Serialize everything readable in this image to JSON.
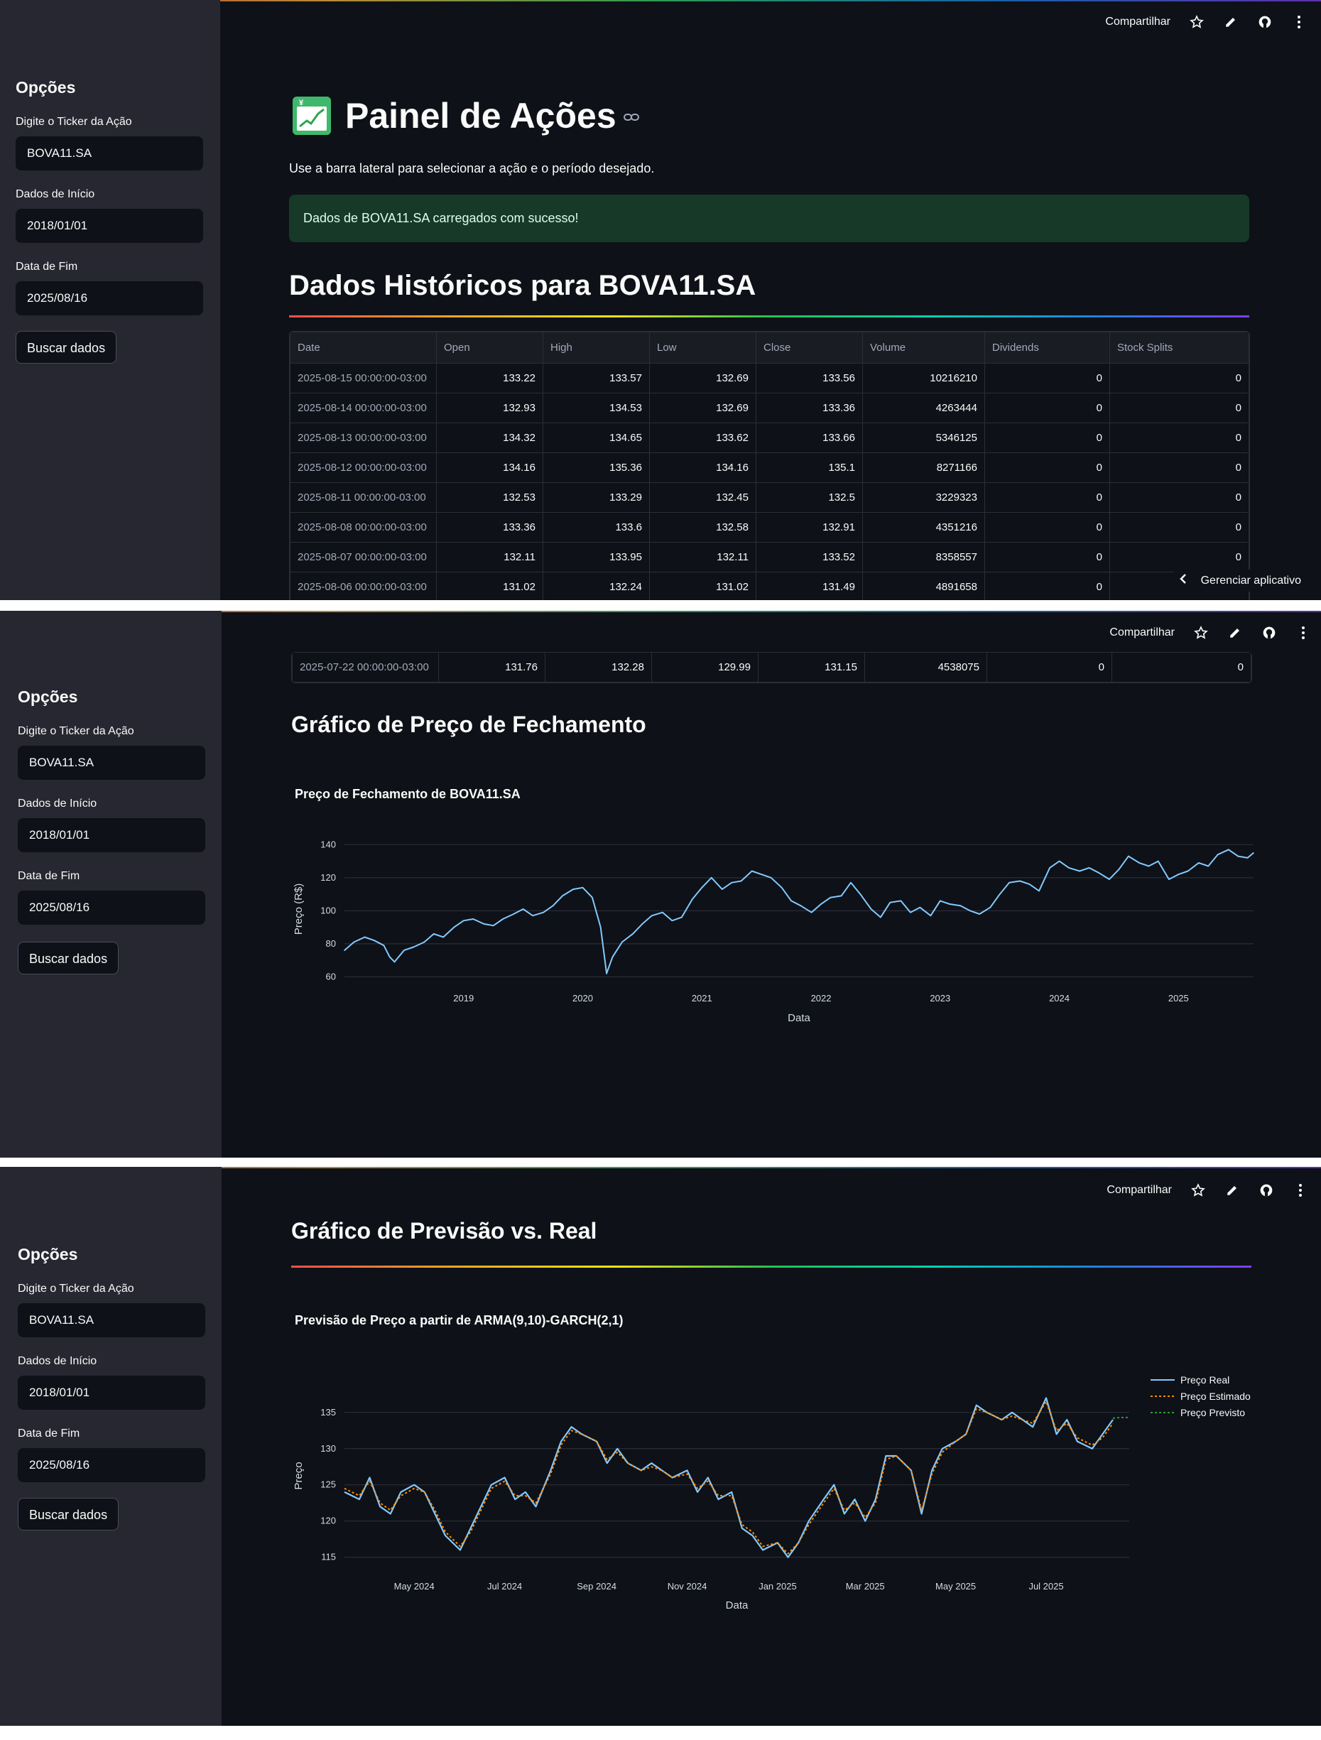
{
  "sidebar": {
    "title": "Opções",
    "ticker_label": "Digite o Ticker da Ação",
    "ticker_value": "BOVA11.SA",
    "start_label": "Dados de Início",
    "start_value": "2018/01/01",
    "end_label": "Data de Fim",
    "end_value": "2025/08/16",
    "button_label": "Buscar dados"
  },
  "topbar": {
    "share_label": "Compartilhar",
    "icons": [
      "star-icon",
      "pencil-icon",
      "github-icon",
      "kebab-menu-icon"
    ]
  },
  "main": {
    "title": "Painel de Ações",
    "emoji": "chart-increasing-with-yen-icon",
    "caption": "Use a barra lateral para selecionar a ação e o período desejado.",
    "success_message": "Dados de BOVA11.SA carregados com sucesso!",
    "historical_heading": "Dados Históricos para BOVA11.SA",
    "manage_app": "Gerenciar aplicativo"
  },
  "table": {
    "columns": [
      "Date",
      "Open",
      "High",
      "Low",
      "Close",
      "Volume",
      "Dividends",
      "Stock Splits"
    ],
    "rows": [
      [
        "2025-08-15 00:00:00-03:00",
        "133.22",
        "133.57",
        "132.69",
        "133.56",
        "10216210",
        "0",
        "0"
      ],
      [
        "2025-08-14 00:00:00-03:00",
        "132.93",
        "134.53",
        "132.69",
        "133.36",
        "4263444",
        "0",
        "0"
      ],
      [
        "2025-08-13 00:00:00-03:00",
        "134.32",
        "134.65",
        "133.62",
        "133.66",
        "5346125",
        "0",
        "0"
      ],
      [
        "2025-08-12 00:00:00-03:00",
        "134.16",
        "135.36",
        "134.16",
        "135.1",
        "8271166",
        "0",
        "0"
      ],
      [
        "2025-08-11 00:00:00-03:00",
        "132.53",
        "133.29",
        "132.45",
        "132.5",
        "3229323",
        "0",
        "0"
      ],
      [
        "2025-08-08 00:00:00-03:00",
        "133.36",
        "133.6",
        "132.58",
        "132.91",
        "4351216",
        "0",
        "0"
      ],
      [
        "2025-08-07 00:00:00-03:00",
        "132.11",
        "133.95",
        "132.11",
        "133.52",
        "8358557",
        "0",
        "0"
      ],
      [
        "2025-08-06 00:00:00-03:00",
        "131.02",
        "132.24",
        "131.02",
        "131.49",
        "4891658",
        "0",
        "0"
      ]
    ],
    "last_row": [
      "2025-07-22 00:00:00-03:00",
      "131.76",
      "132.28",
      "129.99",
      "131.15",
      "4538075",
      "0",
      "0"
    ]
  },
  "section2": {
    "heading": "Gráfico de Preço de Fechamento"
  },
  "section3": {
    "heading": "Gráfico de Previsão vs. Real"
  },
  "colors": {
    "background": "#0e1117",
    "sidebar": "#262730",
    "success_bg": "#173928",
    "line_real": "#83c9ff",
    "line_estimated": "#ff8c00",
    "line_forecast": "#2ca02c"
  },
  "chart_data": [
    {
      "type": "line",
      "title": "Preço de Fechamento de BOVA11.SA",
      "xlabel": "Data",
      "ylabel": "Preço (R$)",
      "xlim": [
        2018.0,
        2025.63
      ],
      "ylim": [
        58,
        144
      ],
      "x_ticks": [
        2019,
        2020,
        2021,
        2022,
        2023,
        2024,
        2025
      ],
      "y_ticks": [
        60,
        80,
        100,
        120,
        140
      ],
      "grid": true,
      "series": [
        {
          "x": [
            2018.0,
            2018.08,
            2018.17,
            2018.25,
            2018.33,
            2018.38,
            2018.42,
            2018.5,
            2018.58,
            2018.67,
            2018.75,
            2018.83,
            2018.92,
            2019.0,
            2019.08,
            2019.17,
            2019.25,
            2019.33,
            2019.42,
            2019.5,
            2019.58,
            2019.67,
            2019.75,
            2019.83,
            2019.92,
            2020.0,
            2020.08,
            2020.15,
            2020.2,
            2020.25,
            2020.33,
            2020.42,
            2020.5,
            2020.58,
            2020.67,
            2020.75,
            2020.83,
            2020.92,
            2021.0,
            2021.08,
            2021.17,
            2021.25,
            2021.33,
            2021.42,
            2021.5,
            2021.58,
            2021.67,
            2021.75,
            2021.83,
            2021.92,
            2022.0,
            2022.08,
            2022.17,
            2022.25,
            2022.33,
            2022.42,
            2022.5,
            2022.58,
            2022.67,
            2022.75,
            2022.83,
            2022.92,
            2023.0,
            2023.08,
            2023.17,
            2023.25,
            2023.33,
            2023.42,
            2023.5,
            2023.58,
            2023.67,
            2023.75,
            2023.83,
            2023.92,
            2024.0,
            2024.08,
            2024.17,
            2024.25,
            2024.33,
            2024.42,
            2024.5,
            2024.58,
            2024.67,
            2024.75,
            2024.83,
            2024.92,
            2025.0,
            2025.08,
            2025.17,
            2025.25,
            2025.33,
            2025.42,
            2025.5,
            2025.58,
            2025.63
          ],
          "y": [
            76,
            81,
            84,
            82,
            79,
            72,
            69,
            76,
            78,
            81,
            86,
            84,
            90,
            94,
            95,
            92,
            91,
            95,
            98,
            101,
            97,
            99,
            103,
            109,
            113,
            114,
            108,
            90,
            62,
            72,
            81,
            86,
            92,
            97,
            99,
            94,
            96,
            107,
            114,
            120,
            113,
            117,
            118,
            124,
            122,
            120,
            114,
            106,
            103,
            99,
            104,
            108,
            109,
            117,
            110,
            101,
            96,
            105,
            106,
            99,
            102,
            97,
            106,
            104,
            103,
            100,
            98,
            102,
            110,
            117,
            118,
            116,
            112,
            126,
            130,
            126,
            124,
            126,
            123,
            119,
            125,
            133,
            129,
            127,
            130,
            119,
            122,
            124,
            129,
            127,
            134,
            137,
            133,
            132,
            135
          ]
        }
      ]
    },
    {
      "type": "line",
      "title": "Previsão de Preço a partir de ARMA(9,10)-GARCH(2,1)",
      "xlabel": "Data",
      "ylabel": "Preço",
      "xlim": [
        "2024-03-15",
        "2025-08-26"
      ],
      "ylim": [
        113.5,
        139
      ],
      "x_ticks": [
        "May 2024",
        "Jul 2024",
        "Sep 2024",
        "Nov 2024",
        "Jan 2025",
        "Mar 2025",
        "May 2025",
        "Jul 2025"
      ],
      "y_ticks": [
        115,
        120,
        125,
        130,
        135
      ],
      "grid": true,
      "legend": "top-right",
      "series": [
        {
          "name": "Preço Real",
          "x": [
            "2024-03-15",
            "2024-03-25",
            "2024-04-01",
            "2024-04-08",
            "2024-04-15",
            "2024-04-22",
            "2024-05-01",
            "2024-05-08",
            "2024-05-15",
            "2024-05-22",
            "2024-06-01",
            "2024-06-08",
            "2024-06-15",
            "2024-06-22",
            "2024-07-01",
            "2024-07-08",
            "2024-07-15",
            "2024-07-22",
            "2024-08-01",
            "2024-08-08",
            "2024-08-15",
            "2024-08-22",
            "2024-09-01",
            "2024-09-08",
            "2024-09-15",
            "2024-09-22",
            "2024-10-01",
            "2024-10-08",
            "2024-10-15",
            "2024-10-22",
            "2024-11-01",
            "2024-11-08",
            "2024-11-15",
            "2024-11-22",
            "2024-12-01",
            "2024-12-08",
            "2024-12-15",
            "2024-12-22",
            "2025-01-01",
            "2025-01-08",
            "2025-01-15",
            "2025-01-22",
            "2025-02-01",
            "2025-02-08",
            "2025-02-15",
            "2025-02-22",
            "2025-03-01",
            "2025-03-08",
            "2025-03-15",
            "2025-03-22",
            "2025-04-01",
            "2025-04-08",
            "2025-04-15",
            "2025-04-22",
            "2025-05-01",
            "2025-05-08",
            "2025-05-15",
            "2025-05-22",
            "2025-06-01",
            "2025-06-08",
            "2025-06-15",
            "2025-06-22",
            "2025-07-01",
            "2025-07-08",
            "2025-07-15",
            "2025-07-22",
            "2025-08-01",
            "2025-08-08",
            "2025-08-15"
          ],
          "y": [
            124,
            123,
            126,
            122,
            121,
            124,
            125,
            124,
            121,
            118,
            116,
            119,
            122,
            125,
            126,
            123,
            124,
            122,
            127,
            131,
            133,
            132,
            131,
            128,
            130,
            128,
            127,
            128,
            127,
            126,
            127,
            124,
            126,
            123,
            124,
            119,
            118,
            116,
            117,
            115,
            117,
            120,
            123,
            125,
            121,
            123,
            120,
            123,
            129,
            129,
            127,
            121,
            127,
            130,
            131,
            132,
            136,
            135,
            134,
            135,
            134,
            133,
            137,
            132,
            134,
            131,
            130,
            132,
            134
          ]
        },
        {
          "name": "Preço Estimado",
          "x": [
            "2024-03-15",
            "2024-03-25",
            "2024-04-01",
            "2024-04-08",
            "2024-04-15",
            "2024-04-22",
            "2024-05-01",
            "2024-05-08",
            "2024-05-15",
            "2024-05-22",
            "2024-06-01",
            "2024-06-08",
            "2024-06-15",
            "2024-06-22",
            "2024-07-01",
            "2024-07-08",
            "2024-07-15",
            "2024-07-22",
            "2024-08-01",
            "2024-08-08",
            "2024-08-15",
            "2024-08-22",
            "2024-09-01",
            "2024-09-08",
            "2024-09-15",
            "2024-09-22",
            "2024-10-01",
            "2024-10-08",
            "2024-10-15",
            "2024-10-22",
            "2024-11-01",
            "2024-11-08",
            "2024-11-15",
            "2024-11-22",
            "2024-12-01",
            "2024-12-08",
            "2024-12-15",
            "2024-12-22",
            "2025-01-01",
            "2025-01-08",
            "2025-01-15",
            "2025-01-22",
            "2025-02-01",
            "2025-02-08",
            "2025-02-15",
            "2025-02-22",
            "2025-03-01",
            "2025-03-08",
            "2025-03-15",
            "2025-03-22",
            "2025-04-01",
            "2025-04-08",
            "2025-04-15",
            "2025-04-22",
            "2025-05-01",
            "2025-05-08",
            "2025-05-15",
            "2025-05-22",
            "2025-06-01",
            "2025-06-08",
            "2025-06-15",
            "2025-06-22",
            "2025-07-01",
            "2025-07-08",
            "2025-07-15",
            "2025-07-22",
            "2025-08-01",
            "2025-08-08",
            "2025-08-15"
          ],
          "y": [
            124.5,
            123.5,
            125.5,
            122.5,
            121.5,
            123.5,
            124.5,
            124,
            121.5,
            118.5,
            116.5,
            118.5,
            121.5,
            124.5,
            125.5,
            123.5,
            123.5,
            122.5,
            126.5,
            130.5,
            132.5,
            132,
            131,
            128.5,
            129.5,
            128,
            127,
            127.5,
            127,
            126,
            126.5,
            124.5,
            125.5,
            123.5,
            123.5,
            119.5,
            118.5,
            116.5,
            117,
            115.5,
            117,
            119.5,
            122.5,
            124.5,
            121.5,
            122.5,
            120.5,
            122.5,
            128.5,
            129,
            127,
            121.5,
            126.5,
            129.5,
            131,
            132,
            135.5,
            135,
            134,
            134.5,
            134,
            133.5,
            136.5,
            132.5,
            133.5,
            131.5,
            130.5,
            131.5,
            133.5
          ]
        },
        {
          "name": "Preço Previsto",
          "x": [
            "2025-08-15",
            "2025-08-20",
            "2025-08-26"
          ],
          "y": [
            134.2,
            134.3,
            134.3
          ]
        }
      ]
    }
  ]
}
